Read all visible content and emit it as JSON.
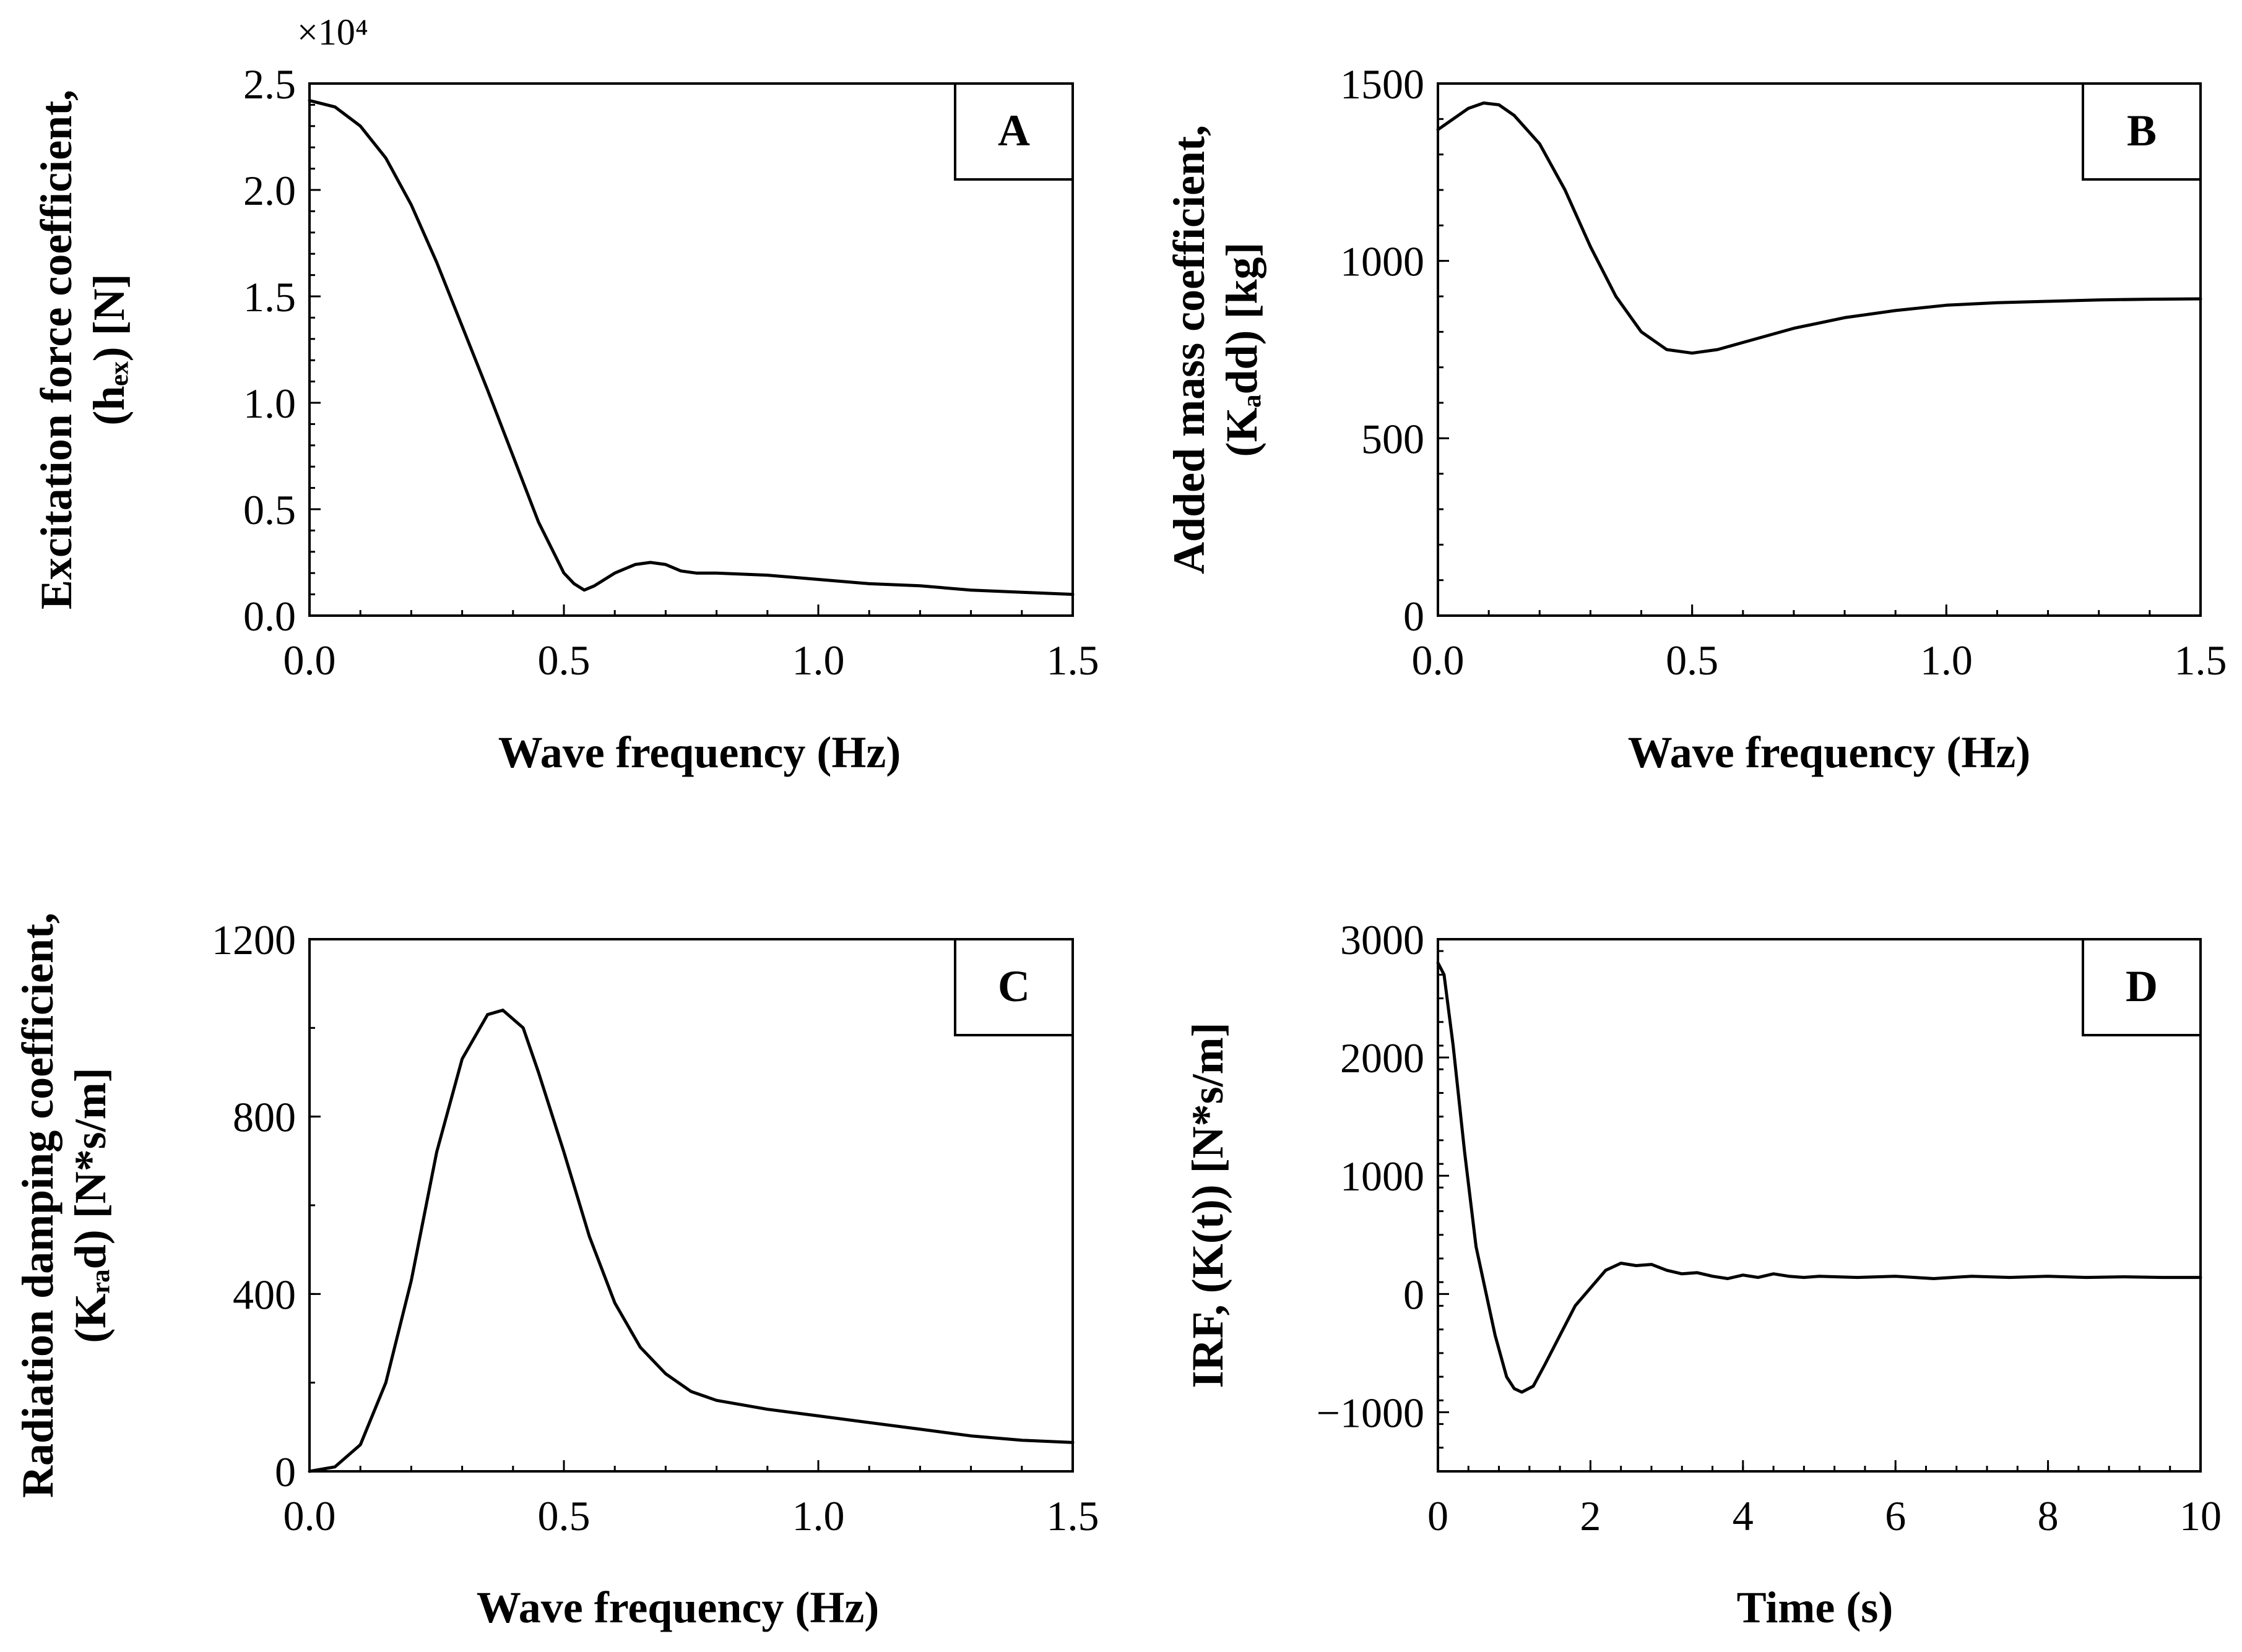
{
  "chart_data": [
    {
      "id": "A",
      "type": "line",
      "panel_label": "A",
      "xlabel": "Wave frequency (Hz)",
      "ylabel_lines": [
        "Excitation force coefficient,",
        "(hₑₓ) [N]"
      ],
      "multiplier": "×10⁴",
      "xlim": [
        0,
        1.5
      ],
      "ylim": [
        0,
        2.5
      ],
      "xticks": [
        0,
        0.5,
        1.0,
        1.5
      ],
      "xtick_labels": [
        "0.0",
        "0.5",
        "1.0",
        "1.5"
      ],
      "yticks": [
        0,
        0.5,
        1.0,
        1.5,
        2.0,
        2.5
      ],
      "ytick_labels": [
        "0.0",
        "0.5",
        "1.0",
        "1.5",
        "2.0",
        "2.5"
      ],
      "yminor": 0.1,
      "x": [
        0,
        0.05,
        0.1,
        0.15,
        0.2,
        0.25,
        0.3,
        0.35,
        0.4,
        0.45,
        0.5,
        0.52,
        0.54,
        0.56,
        0.6,
        0.64,
        0.67,
        0.7,
        0.73,
        0.76,
        0.8,
        0.9,
        1.0,
        1.1,
        1.2,
        1.3,
        1.4,
        1.5
      ],
      "y": [
        2.42,
        2.39,
        2.3,
        2.15,
        1.93,
        1.66,
        1.36,
        1.06,
        0.75,
        0.44,
        0.2,
        0.15,
        0.12,
        0.14,
        0.2,
        0.24,
        0.25,
        0.24,
        0.21,
        0.2,
        0.2,
        0.19,
        0.17,
        0.15,
        0.14,
        0.12,
        0.11,
        0.1
      ]
    },
    {
      "id": "B",
      "type": "line",
      "panel_label": "B",
      "xlabel": "Wave frequency (Hz)",
      "ylabel_lines": [
        "Added mass coefficient,",
        "(Kₐdd) [kg]"
      ],
      "xlim": [
        0,
        1.5
      ],
      "ylim": [
        0,
        1500
      ],
      "xticks": [
        0,
        0.5,
        1.0,
        1.5
      ],
      "xtick_labels": [
        "0.0",
        "0.5",
        "1.0",
        "1.5"
      ],
      "yticks": [
        0,
        500,
        1000,
        1500
      ],
      "ytick_labels": [
        "0",
        "500",
        "1000",
        "1500"
      ],
      "x": [
        0,
        0.03,
        0.06,
        0.09,
        0.12,
        0.15,
        0.2,
        0.25,
        0.3,
        0.35,
        0.4,
        0.45,
        0.5,
        0.55,
        0.6,
        0.7,
        0.8,
        0.9,
        1.0,
        1.1,
        1.2,
        1.3,
        1.4,
        1.5
      ],
      "y": [
        1370,
        1400,
        1430,
        1445,
        1440,
        1410,
        1330,
        1200,
        1040,
        900,
        800,
        750,
        740,
        750,
        770,
        810,
        840,
        860,
        875,
        882,
        886,
        890,
        892,
        893
      ]
    },
    {
      "id": "C",
      "type": "line",
      "panel_label": "C",
      "xlabel": "Wave frequency (Hz)",
      "ylabel_lines": [
        "Radiation damping coefficient,",
        "(Kᵣₐd) [N*s/m]"
      ],
      "xlim": [
        0,
        1.5
      ],
      "ylim": [
        0,
        1200
      ],
      "xticks": [
        0,
        0.5,
        1.0,
        1.5
      ],
      "xtick_labels": [
        "0.0",
        "0.5",
        "1.0",
        "1.5"
      ],
      "yticks": [
        0,
        400,
        800,
        1200
      ],
      "ytick_labels": [
        "0",
        "400",
        "800",
        "1200"
      ],
      "yminor": 200,
      "x": [
        0,
        0.05,
        0.1,
        0.15,
        0.2,
        0.25,
        0.3,
        0.35,
        0.38,
        0.42,
        0.45,
        0.5,
        0.55,
        0.6,
        0.65,
        0.7,
        0.75,
        0.8,
        0.9,
        1.0,
        1.1,
        1.2,
        1.3,
        1.4,
        1.5
      ],
      "y": [
        0,
        10,
        60,
        200,
        430,
        720,
        930,
        1030,
        1040,
        1000,
        900,
        720,
        530,
        380,
        280,
        220,
        180,
        160,
        140,
        125,
        110,
        95,
        80,
        70,
        65
      ]
    },
    {
      "id": "D",
      "type": "line",
      "panel_label": "D",
      "xlabel": "Time (s)",
      "ylabel_lines": [
        "IRF, (K(t)) [N*s/m]"
      ],
      "xlim": [
        0,
        10
      ],
      "ylim": [
        -1500,
        3000
      ],
      "xticks": [
        0,
        2,
        4,
        6,
        8,
        10
      ],
      "xtick_labels": [
        "0",
        "2",
        "4",
        "6",
        "8",
        "10"
      ],
      "yticks": [
        -1000,
        0,
        1000,
        2000,
        3000
      ],
      "ytick_labels": [
        "−1000",
        "0",
        "1000",
        "2000",
        "3000"
      ],
      "x": [
        0,
        0.08,
        0.2,
        0.35,
        0.5,
        0.6,
        0.75,
        0.9,
        1.0,
        1.1,
        1.25,
        1.4,
        1.6,
        1.8,
        2.0,
        2.2,
        2.4,
        2.6,
        2.8,
        3.0,
        3.2,
        3.4,
        3.6,
        3.8,
        4.0,
        4.2,
        4.4,
        4.6,
        4.8,
        5.0,
        5.5,
        6.0,
        6.5,
        7.0,
        7.5,
        8.0,
        8.5,
        9.0,
        9.5,
        10.0
      ],
      "y": [
        2800,
        2700,
        2100,
        1200,
        400,
        100,
        -350,
        -700,
        -800,
        -830,
        -780,
        -600,
        -350,
        -100,
        50,
        200,
        260,
        240,
        250,
        200,
        170,
        180,
        150,
        130,
        160,
        140,
        170,
        150,
        140,
        150,
        140,
        150,
        130,
        150,
        140,
        150,
        140,
        145,
        140,
        140
      ]
    }
  ]
}
